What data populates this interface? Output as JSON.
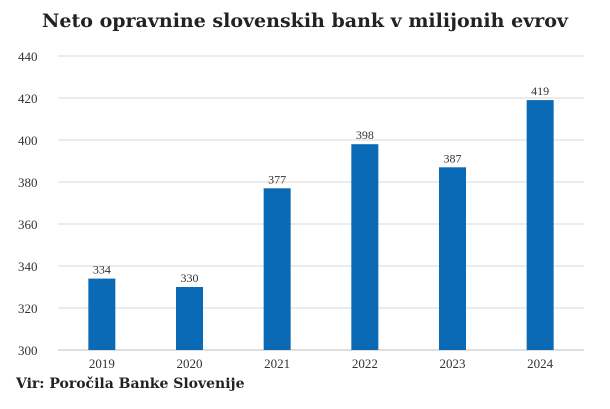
{
  "title": "Neto opravnine slovenskih bank v milijonih evrov",
  "source": "Vir: Poročila Banke Slovenije",
  "chart_data": {
    "type": "bar",
    "title": "Neto opravnine slovenskih bank v milijonih evrov",
    "categories": [
      "2019",
      "2020",
      "2021",
      "2022",
      "2023",
      "2024"
    ],
    "values": [
      334,
      330,
      377,
      398,
      387,
      419
    ],
    "xlabel": "",
    "ylabel": "",
    "ylim": [
      300,
      440
    ],
    "yticks": [
      300,
      320,
      340,
      360,
      380,
      400,
      420,
      440
    ],
    "grid": true,
    "bar_color": "#0a6ab5",
    "data_labels": true
  }
}
